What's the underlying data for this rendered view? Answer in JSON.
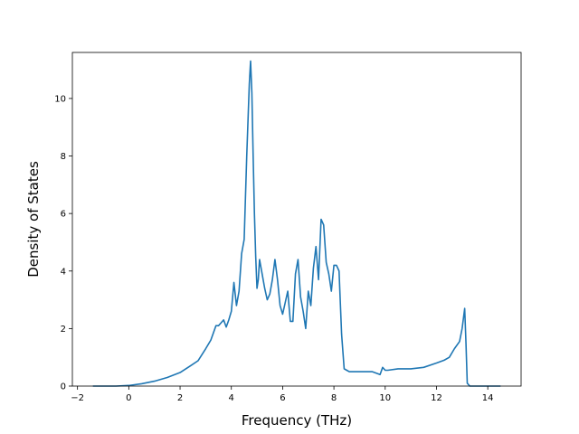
{
  "chart_data": {
    "type": "line",
    "title": "",
    "xlabel": "Frequency (THz)",
    "ylabel": "Density of States",
    "xlim": [
      -2.2,
      15.3
    ],
    "ylim": [
      0,
      11.6
    ],
    "xticks": [
      -2,
      0,
      2,
      4,
      6,
      8,
      10,
      12,
      14
    ],
    "yticks": [
      0,
      2,
      4,
      6,
      8,
      10
    ],
    "xtick_labels": [
      "−2",
      "0",
      "2",
      "4",
      "6",
      "8",
      "10",
      "12",
      "14"
    ],
    "ytick_labels": [
      "0",
      "2",
      "4",
      "6",
      "8",
      "10"
    ],
    "grid": false,
    "line_color": "#1f77b4",
    "series": [
      {
        "x": [
          -1.4,
          -0.5,
          0.0,
          0.5,
          1.0,
          1.5,
          2.0,
          2.4,
          2.7,
          3.0,
          3.2,
          3.4,
          3.5,
          3.6,
          3.7,
          3.8,
          3.9,
          4.0,
          4.1,
          4.2,
          4.3,
          4.4,
          4.5,
          4.6,
          4.7,
          4.75,
          4.8,
          4.85,
          4.9,
          4.95,
          5.0,
          5.05,
          5.1,
          5.2,
          5.3,
          5.4,
          5.5,
          5.6,
          5.7,
          5.8,
          5.9,
          6.0,
          6.1,
          6.2,
          6.3,
          6.4,
          6.5,
          6.6,
          6.7,
          6.8,
          6.9,
          7.0,
          7.1,
          7.2,
          7.3,
          7.4,
          7.5,
          7.6,
          7.7,
          7.75,
          7.8,
          7.9,
          8.0,
          8.1,
          8.2,
          8.3,
          8.4,
          8.5,
          8.6,
          8.7,
          8.9,
          9.2,
          9.5,
          9.8,
          9.9,
          10.0,
          10.1,
          10.5,
          11.0,
          11.5,
          12.0,
          12.3,
          12.5,
          12.7,
          12.9,
          13.0,
          13.1,
          13.15,
          13.2,
          13.3,
          14.5
        ],
        "y": [
          0.0,
          0.0,
          0.02,
          0.08,
          0.17,
          0.3,
          0.47,
          0.7,
          0.88,
          1.3,
          1.6,
          2.1,
          2.1,
          2.2,
          2.3,
          2.05,
          2.3,
          2.6,
          3.6,
          2.8,
          3.3,
          4.6,
          5.1,
          8.0,
          10.5,
          11.3,
          10.2,
          8.0,
          6.0,
          4.5,
          3.4,
          3.7,
          4.4,
          3.9,
          3.4,
          3.0,
          3.2,
          3.7,
          4.4,
          3.7,
          2.8,
          2.5,
          2.9,
          3.3,
          2.25,
          2.25,
          3.9,
          4.4,
          3.1,
          2.6,
          2.0,
          3.3,
          2.8,
          4.1,
          4.85,
          3.7,
          5.8,
          5.6,
          4.3,
          4.1,
          3.9,
          3.3,
          4.2,
          4.2,
          4.0,
          1.8,
          0.6,
          0.55,
          0.5,
          0.5,
          0.5,
          0.5,
          0.5,
          0.4,
          0.65,
          0.55,
          0.55,
          0.6,
          0.6,
          0.65,
          0.8,
          0.9,
          1.0,
          1.3,
          1.55,
          2.0,
          2.7,
          1.5,
          0.1,
          0.0,
          0.0
        ]
      }
    ]
  }
}
